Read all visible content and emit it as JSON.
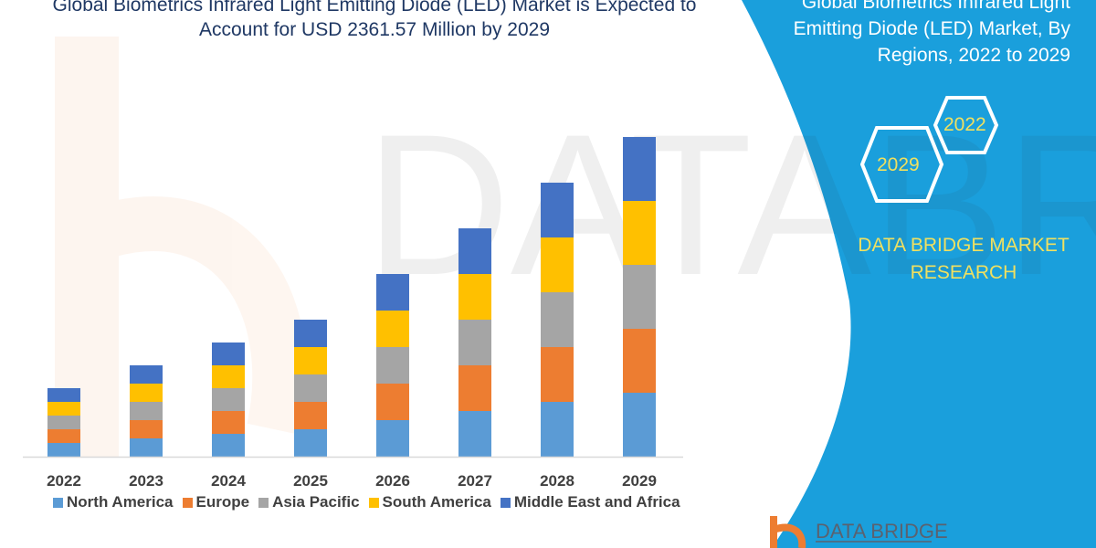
{
  "header": {
    "title_line1": "Global Biometrics Infrared Light Emitting Diode (LED) Market is Expected to",
    "title_line2": "Account for USD 2361.57 Million by 2029"
  },
  "side_panel": {
    "title_line1": "Global Biometrics Infrared Light",
    "title_line2": "Emitting Diode (LED) Market, By",
    "title_line3": "Regions, 2022 to 2029",
    "hex_start": "2022",
    "hex_end": "2029",
    "brand_line1": "DATA BRIDGE MARKET",
    "brand_line2": "RESEARCH",
    "logo_text": "DATA BRIDGE",
    "panel_color": "#1a9fdc",
    "accent_text_color": "#f0e060"
  },
  "chart_data": {
    "type": "bar",
    "stacked": true,
    "categories": [
      "2022",
      "2023",
      "2024",
      "2025",
      "2026",
      "2027",
      "2028",
      "2029"
    ],
    "series": [
      {
        "name": "North America",
        "color": "#5b9bd5",
        "values": [
          3,
          4,
          5,
          6,
          8,
          10,
          12,
          14
        ]
      },
      {
        "name": "Europe",
        "color": "#ed7d31",
        "values": [
          3,
          4,
          5,
          6,
          8,
          10,
          12,
          14
        ]
      },
      {
        "name": "Asia Pacific",
        "color": "#a5a5a5",
        "values": [
          3,
          4,
          5,
          6,
          8,
          10,
          12,
          14
        ]
      },
      {
        "name": "South America",
        "color": "#ffc000",
        "values": [
          3,
          4,
          5,
          6,
          8,
          10,
          12,
          14
        ]
      },
      {
        "name": "Middle East and Africa",
        "color": "#4472c4",
        "values": [
          3,
          4,
          5,
          6,
          8,
          10,
          12,
          14
        ]
      }
    ],
    "ylim": [
      0,
      70
    ],
    "grid": false,
    "y_axis_shown": false,
    "legend_position": "bottom"
  }
}
